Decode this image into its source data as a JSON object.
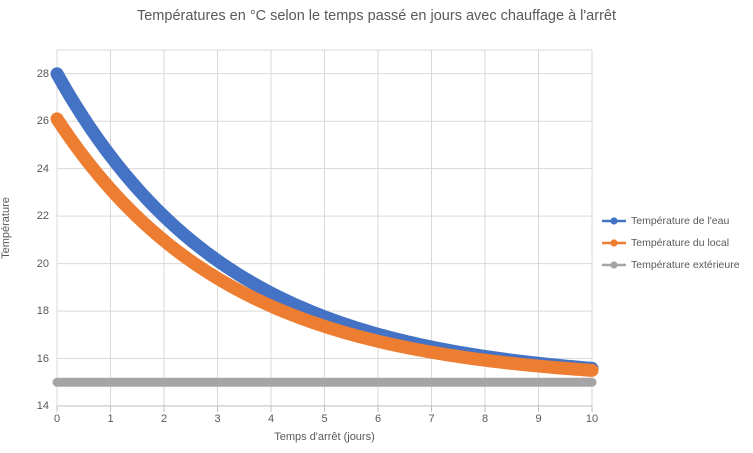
{
  "title": "Températures en °C selon le temps passé en jours avec chauffage à l'arrêt",
  "chart_data": {
    "type": "line",
    "title": "Températures en °C selon le temps passé en jours avec chauffage à l'arrêt",
    "xlabel": "Temps d'arrêt (jours)",
    "ylabel": "Température",
    "xlim": [
      0,
      10
    ],
    "ylim": [
      14,
      29
    ],
    "x_ticks": [
      0,
      1,
      2,
      3,
      4,
      5,
      6,
      7,
      8,
      9,
      10
    ],
    "y_ticks": [
      14,
      16,
      18,
      20,
      22,
      24,
      26,
      28
    ],
    "grid": true,
    "legend_position": "right",
    "x": [
      0,
      1,
      2,
      3,
      4,
      5,
      6,
      7,
      8,
      9,
      10
    ],
    "series": [
      {
        "name": "Température de l'eau",
        "color": "#4472C4",
        "values": [
          28,
          24.5,
          22,
          20.1,
          18.8,
          17.8,
          17,
          16.5,
          16.1,
          15.8,
          15.6
        ],
        "model": {
          "type": "exponential_decay",
          "T_start": 28,
          "T_inf": 15,
          "k": 0.31
        }
      },
      {
        "name": "Température du local",
        "color": "#ED7D31",
        "values": [
          26.1,
          23.1,
          21,
          19.4,
          18.2,
          17.4,
          16.7,
          16.3,
          15.9,
          15.7,
          15.5
        ],
        "model": {
          "type": "exponential_decay",
          "T_start": 26.1,
          "T_inf": 15,
          "k": 0.31
        }
      },
      {
        "name": "Température extérieure",
        "color": "#A5A5A5",
        "values": [
          15,
          15,
          15,
          15,
          15,
          15,
          15,
          15,
          15,
          15,
          15
        ],
        "model": {
          "type": "constant",
          "value": 15
        }
      }
    ],
    "style": {
      "grid_color": "#D9D9D9",
      "axis_color": "#BFBFBF",
      "text_color": "#595959",
      "line_width": 13,
      "flat_line_width": 9
    }
  }
}
